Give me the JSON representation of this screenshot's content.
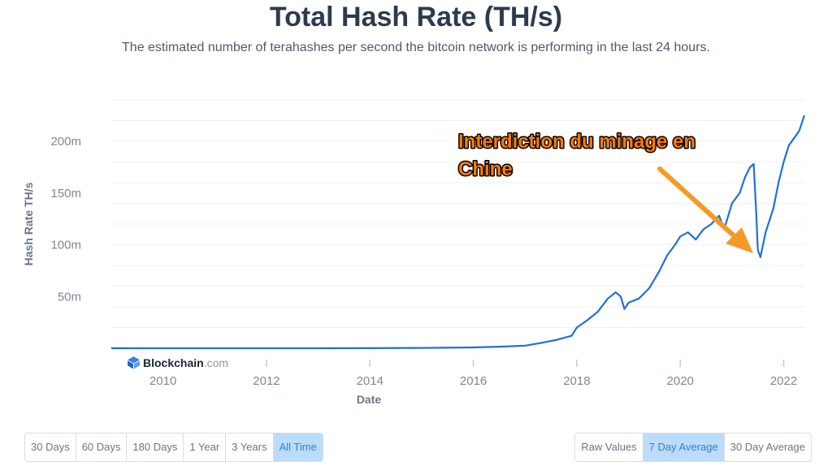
{
  "header": {
    "title": "Total Hash Rate (TH/s)",
    "subtitle": "The estimated number of terahashes per second the bitcoin network is performing in the last 24 hours."
  },
  "brand": {
    "name": "Blockchain",
    "tld": ".com",
    "icon": "blockchain-logo-icon"
  },
  "annotation": {
    "line1": "Interdiction du minage en",
    "line2": "Chine",
    "text_color": "#ff7a00",
    "arrow_color": "#f59a28"
  },
  "time_buttons": [
    {
      "label": "30 Days",
      "active": false
    },
    {
      "label": "60 Days",
      "active": false
    },
    {
      "label": "180 Days",
      "active": false
    },
    {
      "label": "1 Year",
      "active": false
    },
    {
      "label": "3 Years",
      "active": false
    },
    {
      "label": "All Time",
      "active": true
    }
  ],
  "average_buttons": [
    {
      "label": "Raw Values",
      "active": false
    },
    {
      "label": "7 Day Average",
      "active": true
    },
    {
      "label": "30 Day Average",
      "active": false
    }
  ],
  "chart_data": {
    "type": "line",
    "xlabel": "Date",
    "ylabel": "Hash Rate TH/s",
    "x_ticks": [
      "2010",
      "2012",
      "2014",
      "2016",
      "2018",
      "2020",
      "2022"
    ],
    "y_ticks": [
      "50m",
      "100m",
      "150m",
      "200m"
    ],
    "y_tick_values": [
      50000000,
      100000000,
      150000000,
      200000000
    ],
    "xlim": [
      2009.0,
      2022.4
    ],
    "ylim": [
      0,
      240000000
    ],
    "grid": true,
    "line_color": "#1f6fe0",
    "series": [
      {
        "values": [
          [
            2009.0,
            0
          ],
          [
            2011.0,
            0
          ],
          [
            2013.0,
            0
          ],
          [
            2014.0,
            100000
          ],
          [
            2015.0,
            300000
          ],
          [
            2016.0,
            800000
          ],
          [
            2016.5,
            1500000
          ],
          [
            2017.0,
            2500000
          ],
          [
            2017.3,
            5000000
          ],
          [
            2017.6,
            8000000
          ],
          [
            2017.9,
            12000000
          ],
          [
            2018.0,
            20000000
          ],
          [
            2018.2,
            27000000
          ],
          [
            2018.4,
            35000000
          ],
          [
            2018.6,
            48000000
          ],
          [
            2018.75,
            54000000
          ],
          [
            2018.85,
            50000000
          ],
          [
            2018.92,
            38000000
          ],
          [
            2019.0,
            44000000
          ],
          [
            2019.2,
            48000000
          ],
          [
            2019.4,
            58000000
          ],
          [
            2019.6,
            75000000
          ],
          [
            2019.75,
            90000000
          ],
          [
            2019.9,
            100000000
          ],
          [
            2020.0,
            108000000
          ],
          [
            2020.15,
            112000000
          ],
          [
            2020.3,
            105000000
          ],
          [
            2020.45,
            115000000
          ],
          [
            2020.6,
            120000000
          ],
          [
            2020.75,
            128000000
          ],
          [
            2020.85,
            115000000
          ],
          [
            2021.0,
            140000000
          ],
          [
            2021.15,
            150000000
          ],
          [
            2021.25,
            165000000
          ],
          [
            2021.35,
            175000000
          ],
          [
            2021.42,
            178000000
          ],
          [
            2021.47,
            130000000
          ],
          [
            2021.5,
            95000000
          ],
          [
            2021.55,
            88000000
          ],
          [
            2021.65,
            112000000
          ],
          [
            2021.8,
            135000000
          ],
          [
            2021.9,
            160000000
          ],
          [
            2022.0,
            180000000
          ],
          [
            2022.1,
            196000000
          ],
          [
            2022.2,
            203000000
          ],
          [
            2022.3,
            210000000
          ],
          [
            2022.4,
            225000000
          ]
        ]
      }
    ]
  }
}
